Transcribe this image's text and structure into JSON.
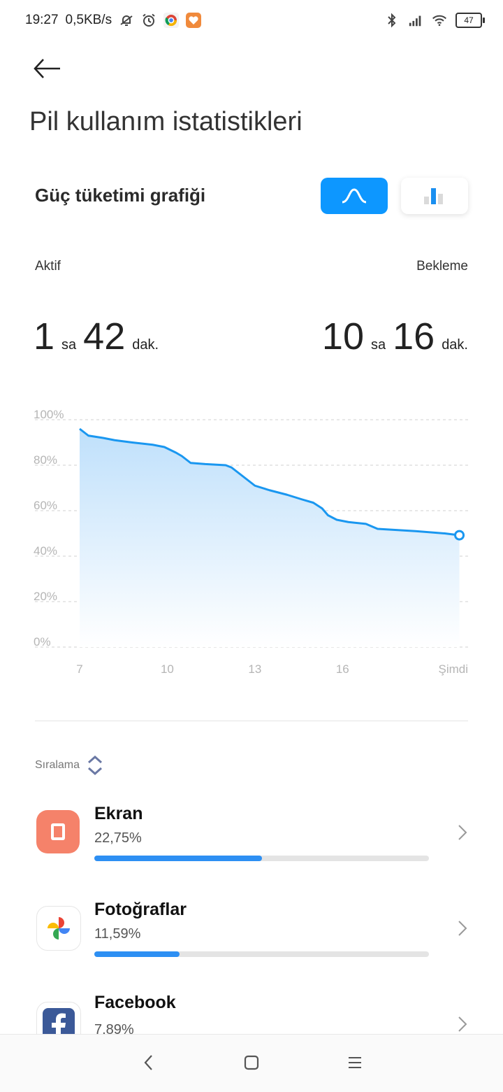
{
  "status_bar": {
    "time": "19:27",
    "net_speed": "0,5KB/s",
    "battery": "47",
    "icons": [
      "mute-bell-icon",
      "alarm-icon",
      "chrome-icon",
      "app-heart-icon",
      "bluetooth-icon",
      "signal-icon",
      "wifi-icon",
      "battery-icon"
    ]
  },
  "header": {
    "title": "Pil kullanım istatistikleri"
  },
  "graph_section": {
    "title": "Güç tüketimi grafiği",
    "toggle_curve_icon": "curve-icon",
    "toggle_bars_icon": "bar-chart-icon",
    "active_label": "Aktif",
    "standby_label": "Bekleme",
    "active": {
      "hours": "1",
      "hours_unit": "sa",
      "minutes": "42",
      "minutes_unit": "dak."
    },
    "standby": {
      "hours": "10",
      "hours_unit": "sa",
      "minutes": "16",
      "minutes_unit": "dak."
    }
  },
  "chart_data": {
    "type": "area",
    "y_ticks": [
      "100%",
      "80%",
      "60%",
      "40%",
      "20%",
      "0%"
    ],
    "x_ticks": [
      "7",
      "10",
      "13",
      "16",
      "Şimdi"
    ],
    "ylim": [
      0,
      100
    ],
    "xlim": [
      7,
      20.25
    ],
    "grid": true,
    "colors": {
      "line": "#1a97f0",
      "fill_top": "#bfe0fb",
      "fill_bottom": "#ffffff"
    },
    "points": [
      {
        "x": 7.0,
        "y": 96
      },
      {
        "x": 7.3,
        "y": 93
      },
      {
        "x": 7.8,
        "y": 92
      },
      {
        "x": 8.2,
        "y": 91
      },
      {
        "x": 8.8,
        "y": 90
      },
      {
        "x": 9.5,
        "y": 89
      },
      {
        "x": 9.9,
        "y": 88
      },
      {
        "x": 10.3,
        "y": 85.5
      },
      {
        "x": 10.5,
        "y": 84
      },
      {
        "x": 10.8,
        "y": 81
      },
      {
        "x": 11.3,
        "y": 80.5
      },
      {
        "x": 12.0,
        "y": 80
      },
      {
        "x": 12.2,
        "y": 79
      },
      {
        "x": 12.7,
        "y": 74
      },
      {
        "x": 13.0,
        "y": 71
      },
      {
        "x": 13.5,
        "y": 69
      },
      {
        "x": 14.1,
        "y": 67
      },
      {
        "x": 14.6,
        "y": 65
      },
      {
        "x": 15.0,
        "y": 63.5
      },
      {
        "x": 15.3,
        "y": 61
      },
      {
        "x": 15.5,
        "y": 58
      },
      {
        "x": 15.8,
        "y": 56
      },
      {
        "x": 16.2,
        "y": 55
      },
      {
        "x": 16.8,
        "y": 54.2
      },
      {
        "x": 17.2,
        "y": 52
      },
      {
        "x": 18.5,
        "y": 51
      },
      {
        "x": 19.5,
        "y": 50
      },
      {
        "x": 20.0,
        "y": 49.2
      }
    ]
  },
  "sort": {
    "label": "Sıralama"
  },
  "apps": [
    {
      "name": "Ekran",
      "percent": "22,75%",
      "fraction": 0.2275,
      "icon": "screen-icon",
      "icon_bg": "#f5826a"
    },
    {
      "name": "Fotoğraflar",
      "percent": "11,59%",
      "fraction": 0.1159,
      "icon": "photos-pinwheel-icon",
      "icon_bg": "#ffffff"
    },
    {
      "name": "Facebook",
      "percent": "7,89%",
      "fraction": 0.0789,
      "icon": "facebook-icon",
      "icon_bg": "#ffffff"
    }
  ],
  "nav": {
    "back_icon": "nav-back-icon",
    "home_icon": "nav-home-icon",
    "menu_icon": "nav-recents-icon"
  }
}
